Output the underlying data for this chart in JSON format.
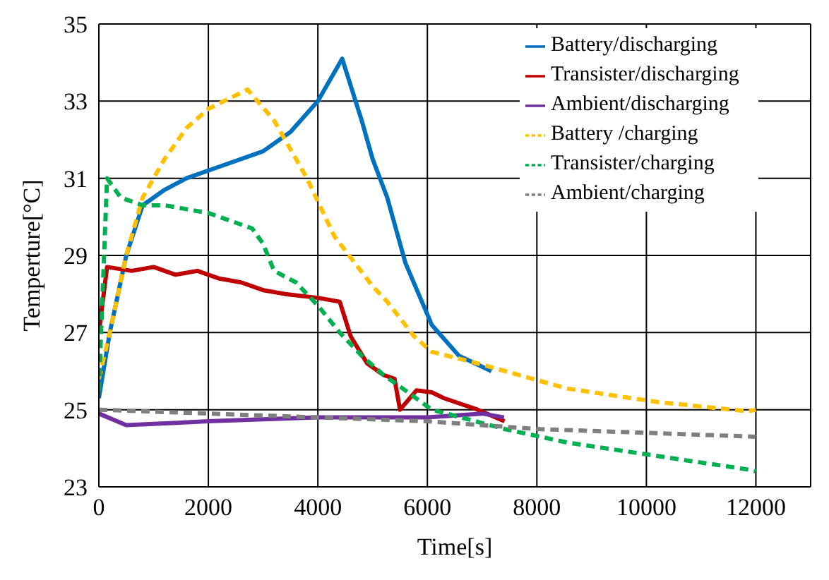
{
  "chart_data": {
    "type": "line",
    "xlabel": "Time[s]",
    "ylabel": "Temperture[°C]",
    "xlim": [
      0,
      13000
    ],
    "xticks": [
      0,
      2000,
      4000,
      6000,
      8000,
      10000,
      12000
    ],
    "ylim": [
      23,
      35
    ],
    "yticks": [
      23,
      25,
      27,
      29,
      31,
      33,
      35
    ],
    "grid": true,
    "legend": "top right",
    "series": [
      {
        "name": "Battery/discharging",
        "color": "#0070c0",
        "line_style": "solid",
        "x": [
          0,
          200,
          500,
          800,
          1200,
          1600,
          2200,
          3000,
          3500,
          4000,
          4444,
          4800,
          5000,
          5267,
          5600,
          6080,
          6575,
          7170
        ],
        "values": [
          25.3,
          27.0,
          29.0,
          30.3,
          30.7,
          31.0,
          31.3,
          31.7,
          32.2,
          33.0,
          34.1,
          32.5,
          31.5,
          30.5,
          28.8,
          27.2,
          26.4,
          26.0
        ]
      },
      {
        "name": "Transister/discharging",
        "color": "#c00000",
        "line_style": "solid",
        "x": [
          0,
          150,
          600,
          1000,
          1400,
          1800,
          2200,
          2600,
          3000,
          3400,
          4000,
          4400,
          4600,
          4900,
          5200,
          5400,
          5500,
          5800,
          6080,
          6300,
          6920,
          7410
        ],
        "values": [
          27.0,
          28.7,
          28.6,
          28.7,
          28.5,
          28.6,
          28.4,
          28.3,
          28.1,
          28.0,
          27.9,
          27.8,
          26.9,
          26.2,
          25.9,
          25.8,
          25.0,
          25.5,
          25.45,
          25.3,
          25.0,
          24.7
        ]
      },
      {
        "name": "Ambient/discharging",
        "color": "#7030a0",
        "line_style": "solid",
        "x": [
          0,
          500,
          2000,
          4000,
          6000,
          7000,
          7400
        ],
        "values": [
          24.9,
          24.6,
          24.7,
          24.8,
          24.8,
          24.9,
          24.8
        ]
      },
      {
        "name": "Battery /charging",
        "color": "#ffc000",
        "line_style": "dashed",
        "x": [
          0,
          200,
          500,
          800,
          1200,
          1600,
          2000,
          2716,
          3200,
          3800,
          4300,
          5000,
          5267,
          5760,
          6080,
          6920,
          8550,
          10200,
          11850,
          12000
        ],
        "values": [
          25.8,
          27.0,
          29.0,
          30.5,
          31.5,
          32.3,
          32.8,
          33.3,
          32.5,
          31.0,
          29.5,
          28.2,
          27.8,
          26.9,
          26.5,
          26.2,
          25.55,
          25.2,
          24.96,
          25.0
        ]
      },
      {
        "name": "Transister/charging",
        "color": "#00b050",
        "line_style": "dashed",
        "x": [
          0,
          150,
          400,
          800,
          1200,
          1600,
          2000,
          2400,
          2800,
          3000,
          3200,
          3600,
          4000,
          4400,
          4800,
          5200,
          5600,
          6080,
          7410,
          8550,
          10200,
          11850,
          12000
        ],
        "values": [
          25.5,
          31.0,
          30.5,
          30.3,
          30.3,
          30.2,
          30.1,
          29.9,
          29.7,
          29.3,
          28.6,
          28.3,
          27.7,
          27.0,
          26.4,
          25.9,
          25.5,
          25.0,
          24.5,
          24.15,
          23.8,
          23.45,
          23.4
        ]
      },
      {
        "name": "Ambient/charging",
        "color": "#7f7f7f",
        "line_style": "dashed",
        "x": [
          0,
          2000,
          4000,
          6000,
          8000,
          10000,
          12000
        ],
        "values": [
          25.0,
          24.9,
          24.8,
          24.7,
          24.5,
          24.4,
          24.3
        ]
      }
    ]
  }
}
